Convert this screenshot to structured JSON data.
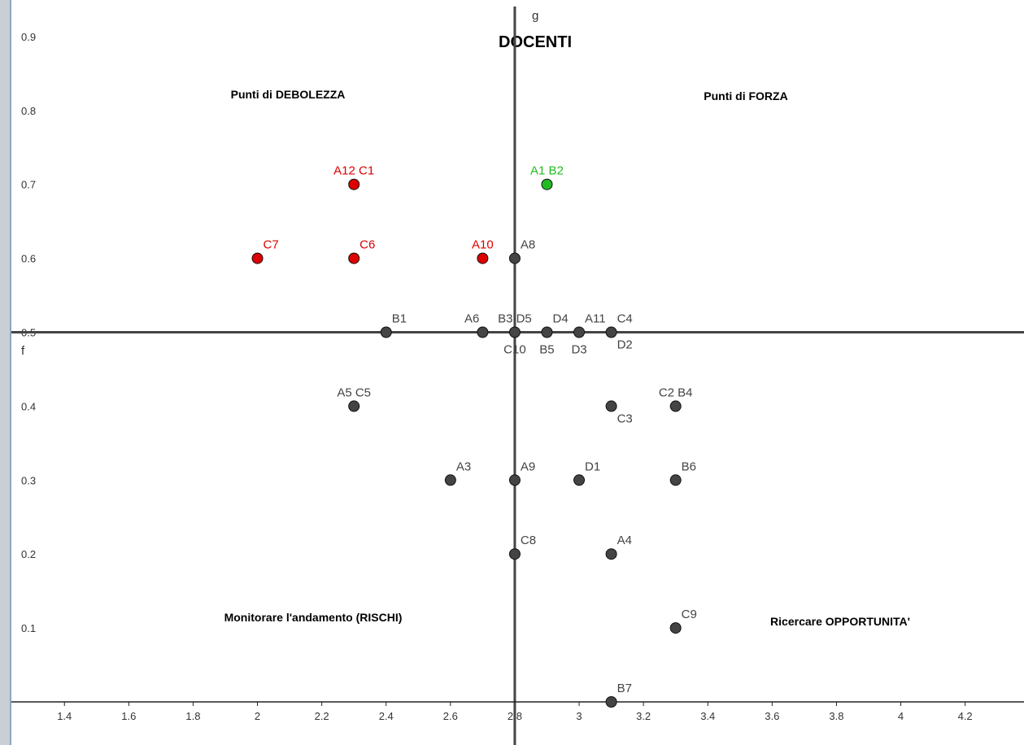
{
  "chart_data": {
    "type": "scatter",
    "title": "DOCENTI",
    "axis_names": {
      "x": "f",
      "y": "g"
    },
    "x_axis_line": 0.5,
    "y_axis_line": 2.8,
    "xlim": [
      1.23,
      4.32
    ],
    "ylim": [
      0,
      0.95
    ],
    "x_ticks": [
      "1.4",
      "1.6",
      "1.8",
      "2",
      "2.2",
      "2.4",
      "2.6",
      "2.8",
      "3",
      "3.2",
      "3.4",
      "3.6",
      "3.8",
      "4",
      "4.2"
    ],
    "x_tick_values": [
      1.4,
      1.6,
      1.8,
      2.0,
      2.2,
      2.4,
      2.6,
      2.8,
      3.0,
      3.2,
      3.4,
      3.6,
      3.8,
      4.0,
      4.2
    ],
    "y_ticks": [
      "0.1",
      "0.2",
      "0.3",
      "0.4",
      "0.5",
      "0.6",
      "0.7",
      "0.8",
      "0.9"
    ],
    "y_tick_values": [
      0.1,
      0.2,
      0.3,
      0.4,
      0.5,
      0.6,
      0.7,
      0.8,
      0.9
    ],
    "quadrants": {
      "top_left": "Punti di DEBOLEZZA",
      "top_right": "Punti di FORZA",
      "bottom_left": "Monitorare l'andamento (RISCHI)",
      "bottom_right": "Ricercare OPPORTUNITA'"
    },
    "colors": {
      "red": "#dd0000",
      "green": "#22bb22",
      "gray": "#444444"
    },
    "points": [
      {
        "x": 2.3,
        "y": 0.7,
        "color": "red",
        "label": "A12  C1",
        "pos": "above"
      },
      {
        "x": 2.9,
        "y": 0.7,
        "color": "green",
        "label": "A1  B2",
        "pos": "above"
      },
      {
        "x": 2.0,
        "y": 0.6,
        "color": "red",
        "label": "C7",
        "pos": "aboveright"
      },
      {
        "x": 2.3,
        "y": 0.6,
        "color": "red",
        "label": "C6",
        "pos": "aboveright"
      },
      {
        "x": 2.7,
        "y": 0.6,
        "color": "red",
        "label": "A10",
        "pos": "above"
      },
      {
        "x": 2.8,
        "y": 0.6,
        "color": "gray",
        "label": "A8",
        "pos": "aboveright"
      },
      {
        "x": 2.4,
        "y": 0.5,
        "color": "gray",
        "label": "B1",
        "pos": "aboveright"
      },
      {
        "x": 2.7,
        "y": 0.5,
        "color": "gray",
        "label": "A6",
        "pos": "aboveleft"
      },
      {
        "x": 2.8,
        "y": 0.5,
        "color": "gray",
        "label": "B3 D5",
        "pos": "above"
      },
      {
        "x": 2.8,
        "y": 0.5,
        "color": "gray",
        "label": "C10",
        "pos": "below"
      },
      {
        "x": 2.9,
        "y": 0.5,
        "color": "gray",
        "label": "D4",
        "pos": "aboveright"
      },
      {
        "x": 2.9,
        "y": 0.5,
        "color": "gray",
        "label": "B5",
        "pos": "below"
      },
      {
        "x": 3.0,
        "y": 0.5,
        "color": "gray",
        "label": "A11",
        "pos": "aboveright"
      },
      {
        "x": 3.0,
        "y": 0.5,
        "color": "gray",
        "label": "D3",
        "pos": "below"
      },
      {
        "x": 3.1,
        "y": 0.5,
        "color": "gray",
        "label": "C4",
        "pos": "aboveright"
      },
      {
        "x": 3.1,
        "y": 0.5,
        "color": "gray",
        "label": "D2",
        "pos": "belowright"
      },
      {
        "x": 2.3,
        "y": 0.4,
        "color": "gray",
        "label": "A5  C5",
        "pos": "above"
      },
      {
        "x": 3.1,
        "y": 0.4,
        "color": "gray",
        "label": "C3",
        "pos": "belowright"
      },
      {
        "x": 3.3,
        "y": 0.4,
        "color": "gray",
        "label": "C2  B4",
        "pos": "above"
      },
      {
        "x": 2.6,
        "y": 0.3,
        "color": "gray",
        "label": "A3",
        "pos": "aboveright"
      },
      {
        "x": 2.8,
        "y": 0.3,
        "color": "gray",
        "label": "A9",
        "pos": "aboveright"
      },
      {
        "x": 3.0,
        "y": 0.3,
        "color": "gray",
        "label": "D1",
        "pos": "aboveright"
      },
      {
        "x": 3.3,
        "y": 0.3,
        "color": "gray",
        "label": "B6",
        "pos": "aboveright"
      },
      {
        "x": 2.8,
        "y": 0.2,
        "color": "gray",
        "label": "C8",
        "pos": "aboveright"
      },
      {
        "x": 3.1,
        "y": 0.2,
        "color": "gray",
        "label": "A4",
        "pos": "aboveright"
      },
      {
        "x": 3.3,
        "y": 0.1,
        "color": "gray",
        "label": "C9",
        "pos": "aboveright"
      },
      {
        "x": 3.1,
        "y": 0.0,
        "color": "gray",
        "label": "B7",
        "pos": "aboveright"
      }
    ]
  }
}
